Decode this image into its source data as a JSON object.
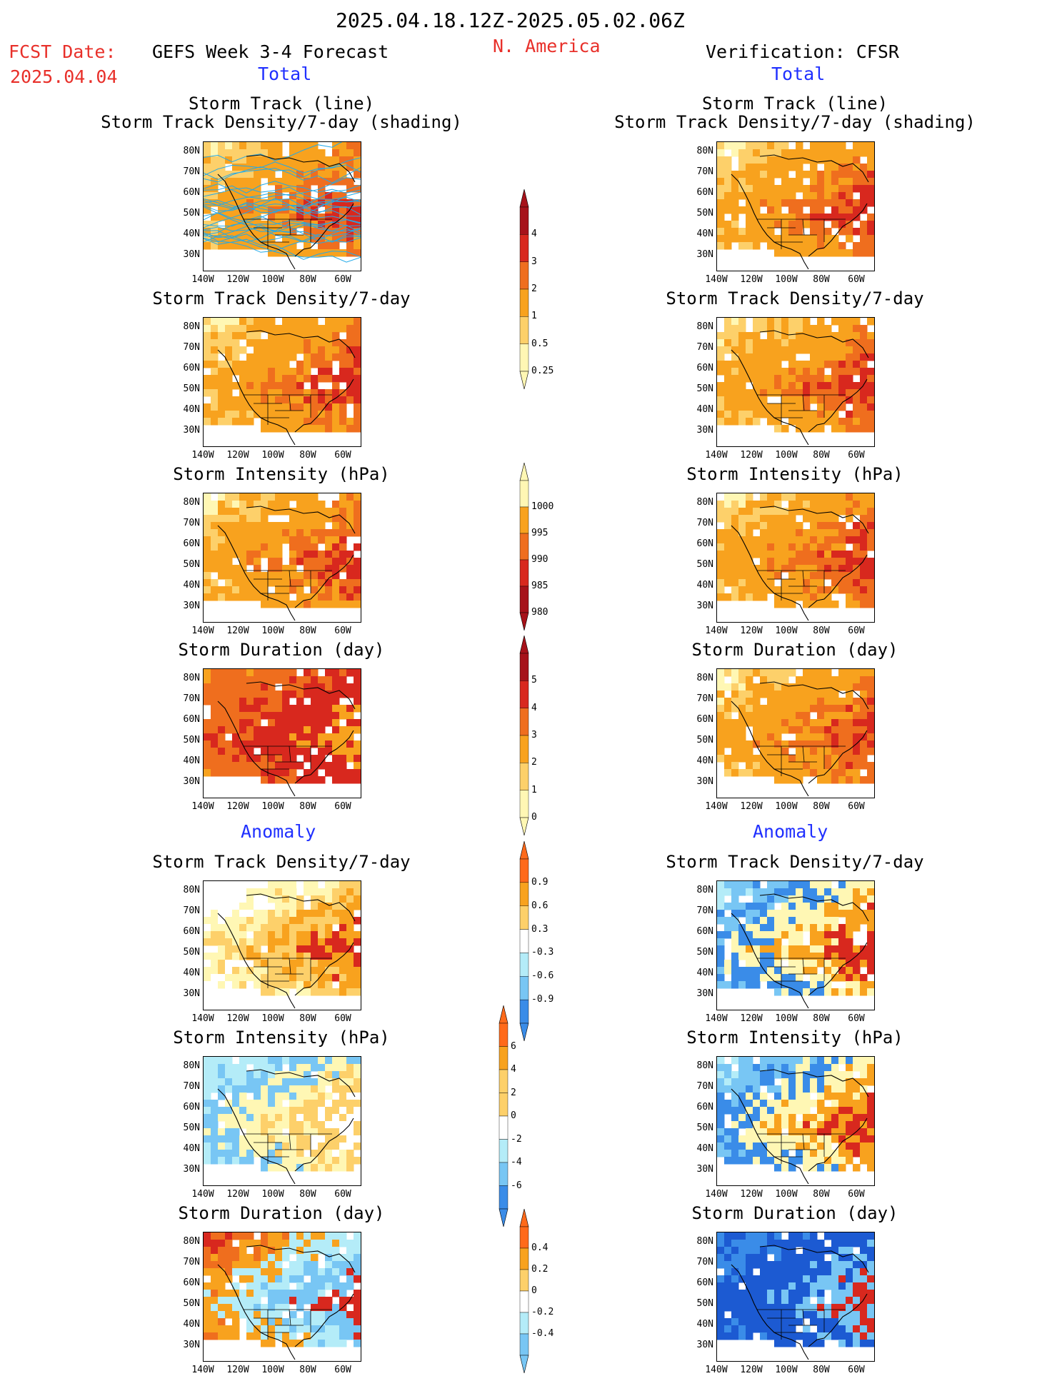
{
  "header": {
    "period": "2025.04.18.12Z-2025.05.02.06Z",
    "fcst_label": "FCST Date:",
    "fcst_date": "2025.04.04",
    "left_title": "GEFS Week 3-4 Forecast",
    "region": "N. America",
    "right_title": "Verification: CFSR",
    "left_total": "Total",
    "right_total": "Total",
    "left_anomaly": "Anomaly",
    "right_anomaly": "Anomaly"
  },
  "panel_titles": {
    "track_line": "Storm Track (line)",
    "track_shading": "Storm Track Density/7-day (shading)",
    "density": "Storm Track Density/7-day",
    "intensity": "Storm Intensity (hPa)",
    "duration": "Storm Duration (day)"
  },
  "axes": {
    "lat": [
      "80N",
      "70N",
      "60N",
      "50N",
      "40N",
      "30N"
    ],
    "lon": [
      "140W",
      "120W",
      "100W",
      "80W",
      "60W"
    ]
  },
  "colorbars": {
    "density_total": [
      "4",
      "3",
      "2",
      "1",
      "0.5",
      "0.25"
    ],
    "intensity_total": [
      "1000",
      "995",
      "990",
      "985",
      "980"
    ],
    "duration_total": [
      "5",
      "4",
      "3",
      "2",
      "1",
      "0"
    ],
    "density_anom": [
      "0.9",
      "0.6",
      "0.3",
      "-0.3",
      "-0.6",
      "-0.9"
    ],
    "intensity_anom": [
      "6",
      "4",
      "2",
      "0",
      "-2",
      "-4",
      "-6"
    ],
    "duration_anom": [
      "0.4",
      "0.2",
      "0",
      "-0.2",
      "-0.4"
    ]
  },
  "colors": {
    "title_red": "#e8302a",
    "title_blue": "#2030ff",
    "pale_yellow": "#fff7b4",
    "light_orange": "#fdd06a",
    "orange": "#f8a21e",
    "dark_orange": "#ef6e1e",
    "red": "#d8281e",
    "dark_red": "#a6121a",
    "light_blue": "#b4ecf8",
    "mid_blue": "#78c6f4",
    "blue": "#3a8ce8",
    "dark_blue": "#1c5ad2",
    "track_line": "#22a9e8"
  }
}
